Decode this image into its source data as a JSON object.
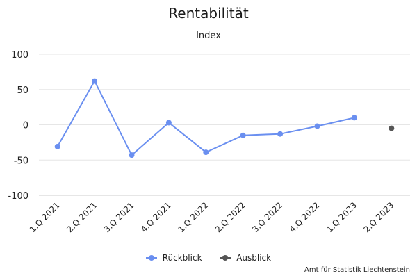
{
  "chart_data": {
    "type": "line",
    "title": "Rentabilität",
    "subtitle": "Index",
    "categories": [
      "1.Q 2021",
      "2.Q 2021",
      "3.Q 2021",
      "4.Q 2021",
      "1.Q 2022",
      "2.Q 2022",
      "3.Q 2022",
      "4.Q 2022",
      "1.Q 2023",
      "2.Q 2023"
    ],
    "series": [
      {
        "name": "Rückblick",
        "color": "#6a8ff0",
        "values": [
          -31,
          62,
          -43,
          3,
          -39,
          -15,
          -13,
          -2,
          10,
          null
        ]
      },
      {
        "name": "Ausblick",
        "color": "#555555",
        "values": [
          null,
          null,
          null,
          null,
          null,
          null,
          null,
          null,
          null,
          -5
        ]
      }
    ],
    "yticks": [
      -100,
      -50,
      0,
      50,
      100
    ],
    "ylim": [
      -100,
      100
    ],
    "grid": true,
    "legend": "bottom-center",
    "credits": "Amt für Statistik Liechtenstein"
  }
}
